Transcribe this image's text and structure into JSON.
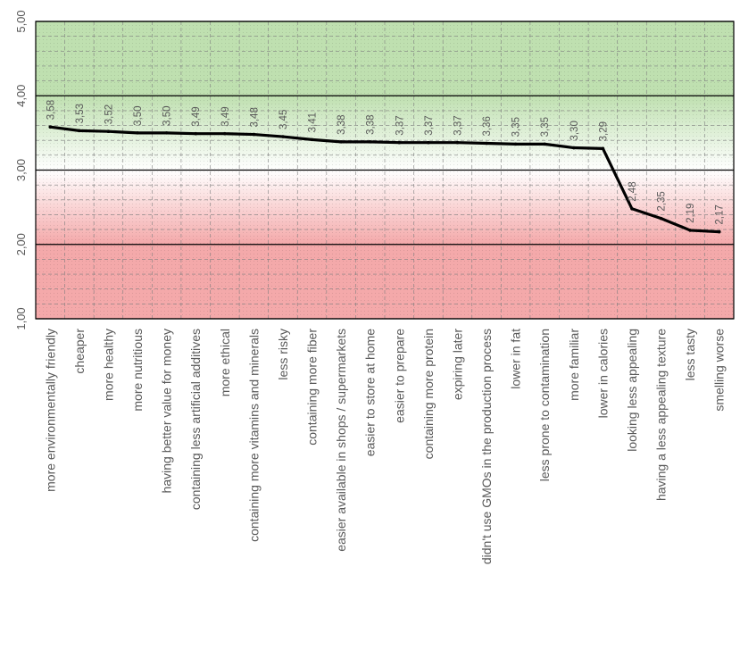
{
  "chart_data": {
    "type": "line",
    "categories": [
      "more environmentally friendly",
      "cheaper",
      "more healthy",
      "more nutritious",
      "having better value for money",
      "containing less artificial additives",
      "more ethical",
      "containing more vitamins and minerals",
      "less risky",
      "containing more fiber",
      "easier available in shops / supermarkets",
      "easier to store at home",
      "easier to prepare",
      "containing more protein",
      "expiring later",
      "didn't use GMOs in the production process",
      "lower in fat",
      "less prone to contamination",
      "more familiar",
      "lower in calories",
      "looking less appealing",
      "having a less appealing texture",
      "less tasty",
      "smelling worse"
    ],
    "values": [
      3.58,
      3.53,
      3.52,
      3.5,
      3.5,
      3.49,
      3.49,
      3.48,
      3.45,
      3.41,
      3.38,
      3.38,
      3.37,
      3.37,
      3.37,
      3.36,
      3.35,
      3.35,
      3.3,
      3.29,
      2.48,
      2.35,
      2.19,
      2.17
    ],
    "value_labels": [
      "3,58",
      "3,53",
      "3,52",
      "3,50",
      "3,50",
      "3,49",
      "3,49",
      "3,48",
      "3,45",
      "3,41",
      "3,38",
      "3,38",
      "3,37",
      "3,37",
      "3,37",
      "3,36",
      "3,35",
      "3,35",
      "3,30",
      "3,29",
      "2,48",
      "2,35",
      "2,19",
      "2,17"
    ],
    "ylim": [
      1,
      5
    ],
    "yticks": [
      1,
      2,
      3,
      4,
      5
    ],
    "ytick_labels": [
      "1,00",
      "2,00",
      "3,00",
      "4,00",
      "5,00"
    ],
    "title": "",
    "xlabel": "",
    "ylabel": "",
    "grid": true,
    "colors": {
      "line": "#000000",
      "band_top": "#bfe0b0",
      "band_bottom": "#f4a9aa",
      "grid_major": "#000000",
      "grid_minor": "#7f7f7f"
    }
  }
}
